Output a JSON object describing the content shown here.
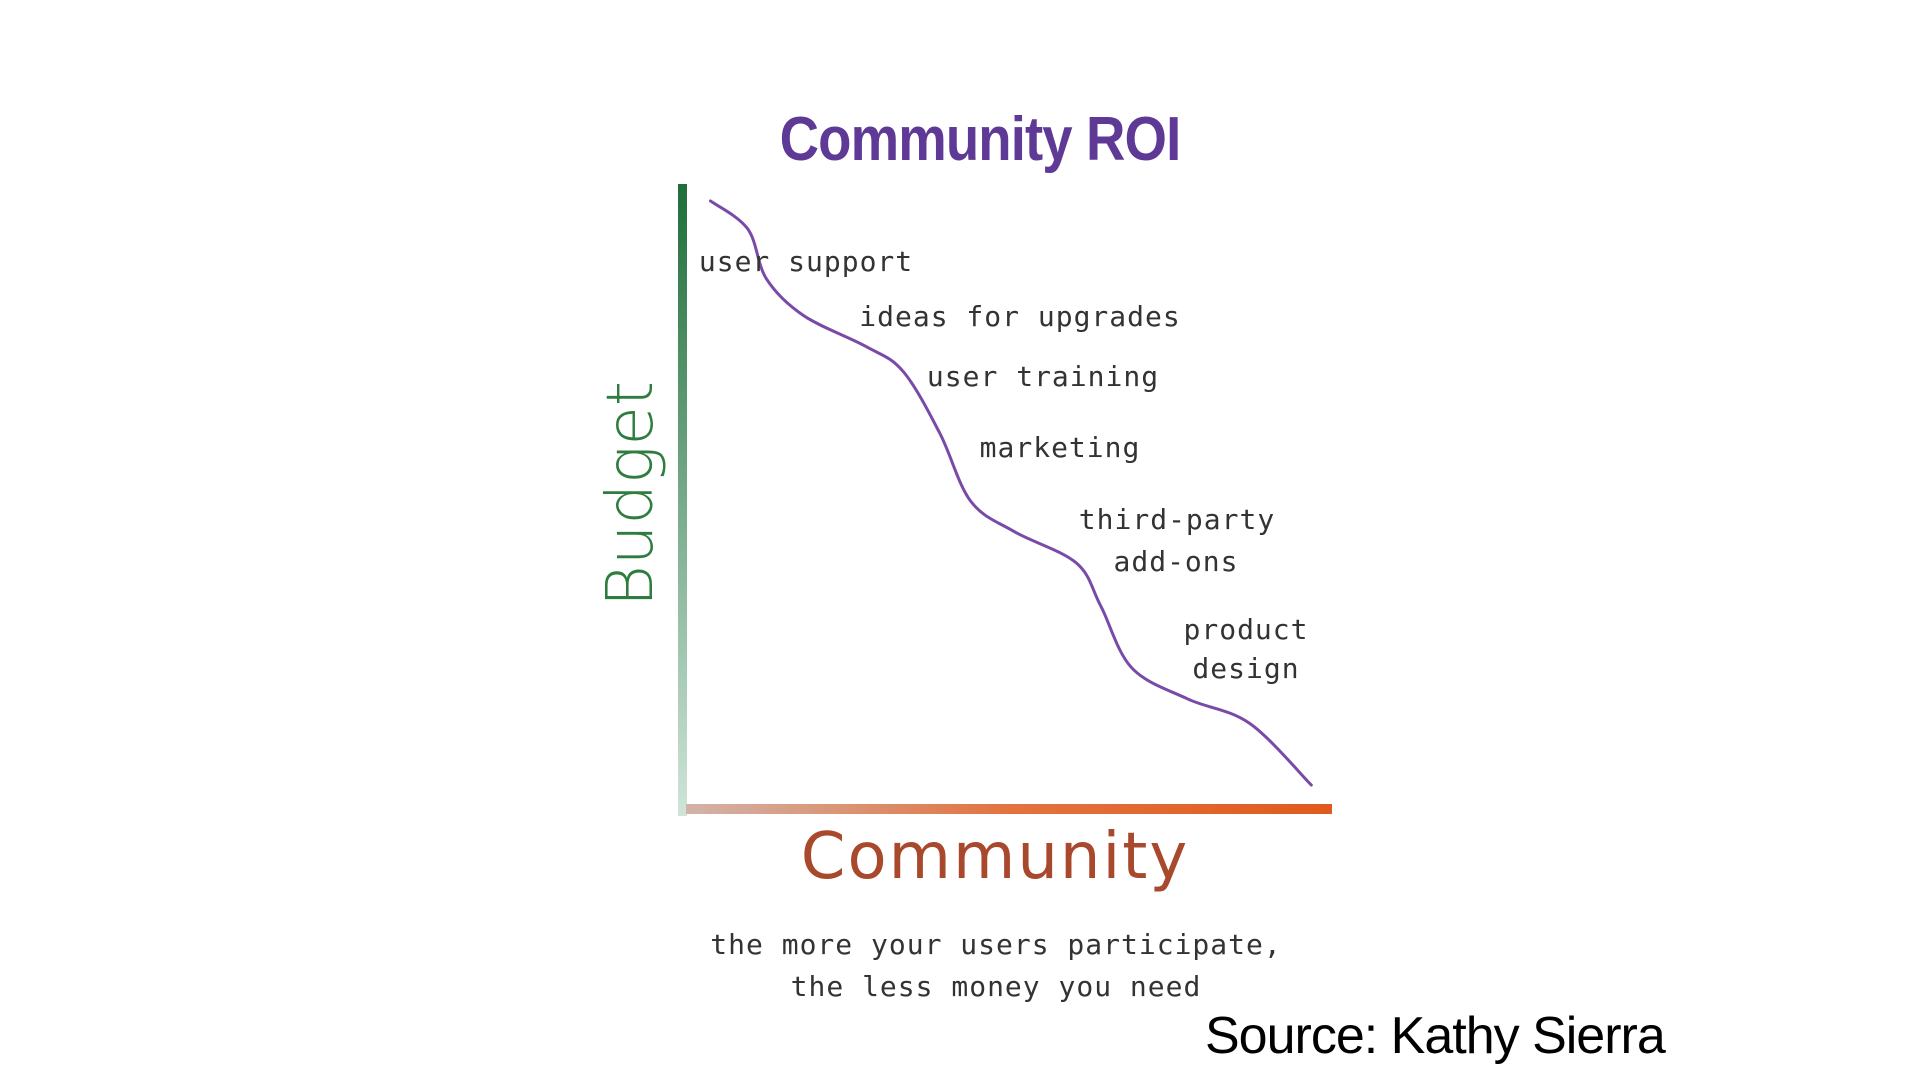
{
  "chart_data": {
    "type": "line",
    "title": "Community ROI",
    "xlabel": "Community",
    "ylabel": "Budget",
    "xlim": [
      0,
      100
    ],
    "ylim": [
      0,
      100
    ],
    "grid": false,
    "axis_ticks": false,
    "series": [
      {
        "color": "#7a4aa8",
        "x": [
          3.8,
          9.6,
          12.5,
          18.3,
          27.9,
          33.7,
          39.4,
          44.2,
          51.0,
          60.6,
          64.4,
          69.2,
          77.9,
          87.5,
          97.1
        ],
        "y": [
          97.6,
          93.1,
          85.1,
          79.2,
          74.3,
          70.3,
          60.4,
          49.5,
          44.6,
          39.6,
          32.7,
          22.8,
          17.8,
          13.9,
          4.0
        ]
      }
    ],
    "annotations": [
      {
        "text": "user support"
      },
      {
        "text": "ideas for upgrades"
      },
      {
        "text": "user training"
      },
      {
        "text": "marketing"
      },
      {
        "text": "third-party"
      },
      {
        "text": "add-ons"
      },
      {
        "text": "product"
      },
      {
        "text": "design"
      }
    ],
    "caption": [
      "the more your users participate,",
      "the less money you need"
    ],
    "colors": {
      "title": "#5e3a96",
      "y_axis": "#1f6e3a",
      "x_axis": "#e05a1e",
      "curve": "#7a4aa8"
    }
  },
  "source": "Source: Kathy Sierra"
}
